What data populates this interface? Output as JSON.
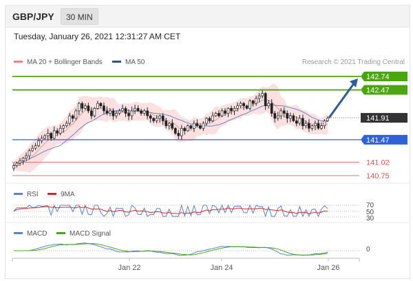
{
  "header": {
    "pair": "GBP/JPY",
    "timeframe": "30 MIN"
  },
  "timestamp": "Tuesday, January 26, 2021 12:31:27 AM CET",
  "legend": {
    "bb_label": "MA 20 + Bollinger Bands",
    "ma50_label": "MA 50",
    "credit": "Research © 2021 Trading Central"
  },
  "colors": {
    "bullish": "#4ba50f",
    "pivot": "#2f62d8",
    "bearish": "#e05252",
    "last": "#333333",
    "arrow": "#2e5b9a",
    "bands": "#f6cfcf",
    "ma50": "#5577c8",
    "rsi": "#5b7fd1",
    "rsi_ma": "#d72626",
    "macd": "#5b7fd1",
    "macd_signal": "#4ba50f"
  },
  "levels": [
    {
      "value": "142.74",
      "kind": "resistance"
    },
    {
      "value": "142.47",
      "kind": "resistance"
    },
    {
      "value": "141.91",
      "kind": "last"
    },
    {
      "value": "141.47",
      "kind": "pivot"
    },
    {
      "value": "141.02",
      "kind": "support"
    },
    {
      "value": "140.75",
      "kind": "support"
    }
  ],
  "rsi_panel": {
    "label": "RSI",
    "ma_label": "9MA",
    "ticks": [
      "70",
      "50",
      "30"
    ]
  },
  "macd_panel": {
    "label": "MACD",
    "signal_label": "MACD Signal",
    "zero": "0"
  },
  "x_axis": [
    "Jan 22",
    "Jan 24",
    "Jan 26"
  ],
  "chart_data": {
    "type": "candlestick",
    "instrument": "GBP/JPY",
    "interval": "30 MIN",
    "price_closes": [
      140.95,
      141.0,
      141.05,
      141.1,
      141.15,
      141.25,
      141.3,
      141.35,
      141.45,
      141.5,
      141.55,
      141.6,
      141.5,
      141.65,
      141.6,
      141.7,
      141.75,
      141.8,
      141.95,
      141.9,
      142.05,
      142.2,
      142.1,
      142.15,
      142.05,
      141.95,
      142.1,
      142.2,
      142.15,
      142.05,
      142.0,
      142.05,
      141.95,
      142.0,
      142.05,
      142.1,
      142.0,
      141.95,
      142.05,
      142.1,
      142.05,
      142.0,
      142.05,
      141.95,
      141.9,
      141.85,
      141.9,
      141.95,
      141.85,
      141.75,
      141.8,
      141.7,
      141.6,
      141.55,
      141.7,
      141.65,
      141.75,
      141.7,
      141.8,
      141.75,
      141.7,
      141.8,
      141.9,
      141.85,
      141.95,
      142.0,
      141.95,
      142.05,
      142.0,
      142.1,
      142.05,
      142.1,
      142.15,
      142.2,
      142.15,
      142.1,
      142.25,
      142.2,
      142.3,
      142.35,
      142.4,
      142.15,
      142.2,
      142.0,
      141.9,
      141.95,
      142.05,
      142.0,
      141.9,
      141.95,
      141.85,
      141.8,
      141.9,
      141.75,
      141.8,
      141.7,
      141.75,
      141.8,
      141.7,
      141.75,
      141.85,
      141.9
    ],
    "resistance": [
      142.74,
      142.47
    ],
    "last_price": 141.91,
    "pivot": 141.47,
    "support": [
      141.02,
      140.75
    ],
    "rsi_levels": [
      70,
      50,
      30
    ],
    "x_labels": [
      "Jan 22",
      "Jan 24",
      "Jan 26"
    ]
  }
}
